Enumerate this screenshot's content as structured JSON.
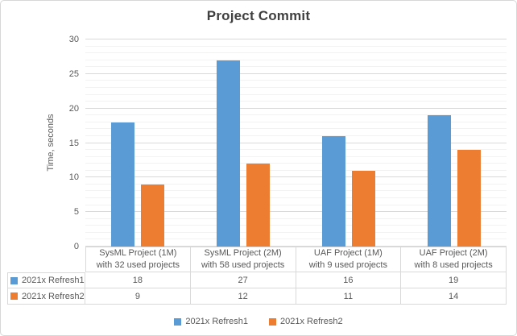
{
  "title": "Project Commit",
  "y_axis": {
    "title": "Time, seconds",
    "min": 0,
    "max": 30,
    "major_step": 5,
    "minor_step": 1,
    "tick_labels": [
      "0",
      "5",
      "10",
      "15",
      "20",
      "25",
      "30"
    ]
  },
  "chart_data": {
    "type": "bar",
    "title": "Project Commit",
    "xlabel": "",
    "ylabel": "Time, seconds",
    "ylim": [
      0,
      30
    ],
    "grid": true,
    "minor_grid": true,
    "legend_position": "bottom",
    "data_table_shown": true,
    "categories": [
      "SysML Project (1M)\nwith 32 used projects",
      "SysML Project (2M)\nwith 58 used projects",
      "UAF Project (1M)\nwith 9 used projects",
      "UAF Project (2M)\nwith 8 used projects"
    ],
    "series": [
      {
        "name": "2021x Refresh1",
        "color": "#5B9BD5",
        "values": [
          18,
          27,
          16,
          19
        ]
      },
      {
        "name": "2021x Refresh2",
        "color": "#ED7D31",
        "values": [
          9,
          12,
          11,
          14
        ]
      }
    ]
  },
  "colors": {
    "series1": "#5B9BD5",
    "series2": "#ED7D31",
    "major_gridline": "#D9D9D9",
    "minor_gridline": "#F2F2F2",
    "table_border": "#D9D9D9",
    "text": "#595959",
    "title_text": "#404040",
    "frame_border": "#D7D7D7"
  }
}
